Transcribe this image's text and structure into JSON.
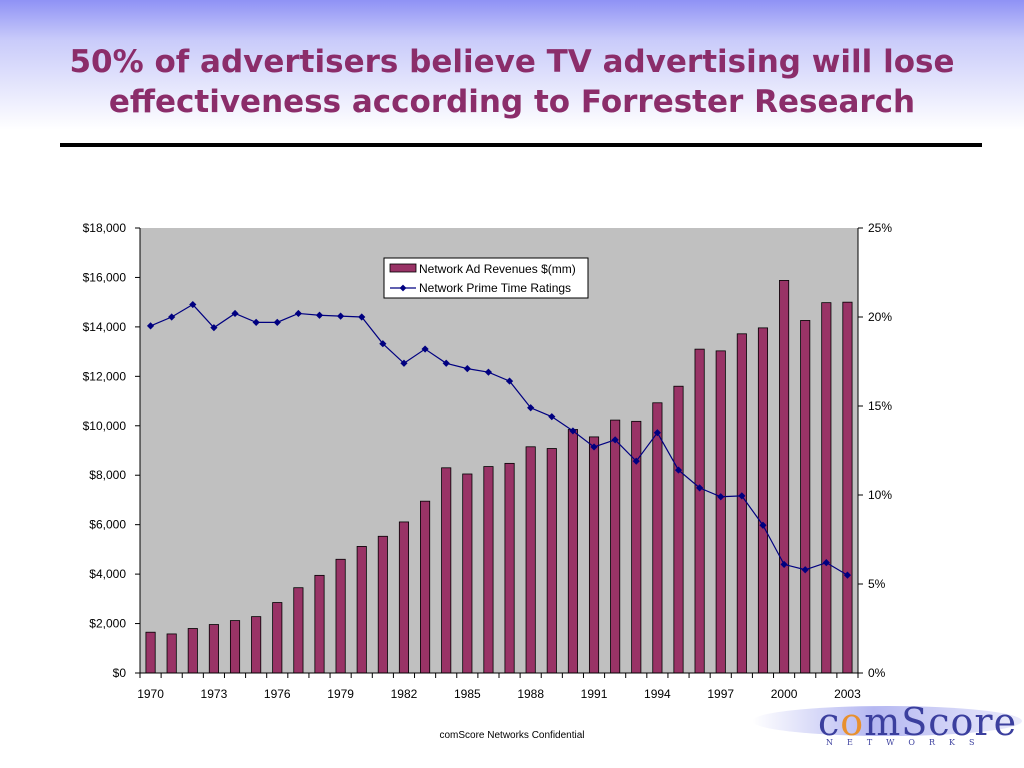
{
  "slide": {
    "title_line1": "50% of advertisers believe TV advertising will lose",
    "title_line2": "effectiveness according to Forrester Research",
    "footer": "comScore Networks Confidential",
    "title_color": "#8b2d6a"
  },
  "logo": {
    "word_pre": "c",
    "word_o": "o",
    "word_post": "mScore",
    "sub": "NETWORKS",
    "colors": {
      "main": "#3b3f9e",
      "accent": "#e8902e"
    }
  },
  "chart_data": {
    "type": "bar",
    "title": "",
    "plot_background": "#c0c0c0",
    "grid": false,
    "legend_position": "top-center",
    "x": [
      1970,
      1971,
      1972,
      1973,
      1974,
      1975,
      1976,
      1977,
      1978,
      1979,
      1980,
      1981,
      1982,
      1983,
      1984,
      1985,
      1986,
      1987,
      1988,
      1989,
      1990,
      1991,
      1992,
      1993,
      1994,
      1995,
      1996,
      1997,
      1998,
      1999,
      2000,
      2001,
      2002,
      2003
    ],
    "x_tick_labels": [
      "1970",
      "1973",
      "1976",
      "1979",
      "1982",
      "1985",
      "1988",
      "1991",
      "1994",
      "1997",
      "2000",
      "2003"
    ],
    "y_left": {
      "ylim": [
        0,
        18000
      ],
      "tick_values": [
        0,
        2000,
        4000,
        6000,
        8000,
        10000,
        12000,
        14000,
        16000,
        18000
      ],
      "tick_labels": [
        "$0",
        "$2,000",
        "$4,000",
        "$6,000",
        "$8,000",
        "$10,000",
        "$12,000",
        "$14,000",
        "$16,000",
        "$18,000"
      ]
    },
    "y_right": {
      "ylim": [
        0,
        25
      ],
      "tick_values": [
        0,
        5,
        10,
        15,
        20,
        25
      ],
      "tick_labels": [
        "0%",
        "5%",
        "10%",
        "15%",
        "20%",
        "25%"
      ]
    },
    "series": [
      {
        "name": "Network Ad Revenues $(mm)",
        "type": "bar",
        "axis": "left",
        "color": "#993366",
        "values": [
          1650,
          1580,
          1800,
          1960,
          2120,
          2280,
          2850,
          3450,
          3950,
          4600,
          5120,
          5530,
          6110,
          6950,
          8300,
          8050,
          8350,
          8480,
          9150,
          9080,
          9850,
          9550,
          10230,
          10180,
          10930,
          11600,
          13100,
          13030,
          13720,
          13960,
          15880,
          14260,
          14980,
          15000
        ]
      },
      {
        "name": "Network Prime Time Ratings",
        "type": "line",
        "axis": "right",
        "color": "#000080",
        "values": [
          19.5,
          20.0,
          20.7,
          19.4,
          20.2,
          19.7,
          19.7,
          20.2,
          20.1,
          20.05,
          20.0,
          18.5,
          17.4,
          18.2,
          17.4,
          17.1,
          16.9,
          16.4,
          14.9,
          14.4,
          13.6,
          12.7,
          13.1,
          11.9,
          13.5,
          11.4,
          10.4,
          9.9,
          9.95,
          8.3,
          6.1,
          5.8,
          6.2,
          5.5
        ]
      }
    ]
  }
}
